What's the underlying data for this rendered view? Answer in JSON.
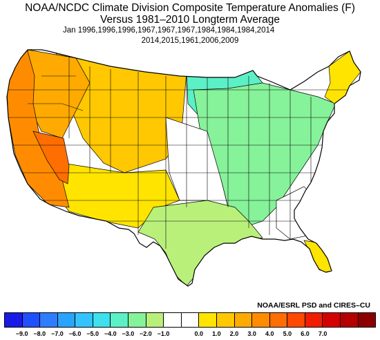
{
  "header": {
    "title_line1": "NOAA/NCDC Climate Division Composite Temperature Anomalies (F)",
    "title_line2": "Versus 1981–2010 Longterm Average",
    "years_line1": "Jan   1996,1996,1996,1967,1967,1967,1984,1984,1984,2014",
    "years_line2": "2014,2015,1961,2006,2009"
  },
  "credit": "NOAA/ESRL PSD and CIRES–CU",
  "legend": {
    "colors": [
      "#1a1ae6",
      "#1f4fff",
      "#2f7dff",
      "#2aa3ff",
      "#33c4ff",
      "#3fe0ee",
      "#5cf0c6",
      "#86f29a",
      "#b9f07a",
      "#ffffff",
      "#ffffff",
      "#ffe400",
      "#ffc800",
      "#ffaa00",
      "#ff8c00",
      "#ff6e00",
      "#ff4800",
      "#f01e00",
      "#d40000",
      "#b40000",
      "#8c0000"
    ],
    "tick_labels": [
      "−9.0",
      "−8.0",
      "−7.0",
      "−6.0",
      "−5.0",
      "−4.0",
      "−3.0",
      "−2.0",
      "−1.0",
      "0.0",
      "1.0",
      "2.0",
      "3.0",
      "4.0",
      "5.0",
      "6.0",
      "7.0"
    ]
  },
  "map_colors": {
    "pacific_coast": "#ff8c00",
    "nevada": "#ff6e00",
    "northwest_interior": "#ffaa00",
    "mountain_west": "#ffc800",
    "southwest": "#ffe400",
    "midwest_cool": "#86f29a",
    "north_cool": "#5cf0c6",
    "gulf_cool": "#b9f07a",
    "northeast_warm": "#ffe400",
    "florida": "#ffe400",
    "neutral": "#ffffff",
    "border": "#000000"
  }
}
